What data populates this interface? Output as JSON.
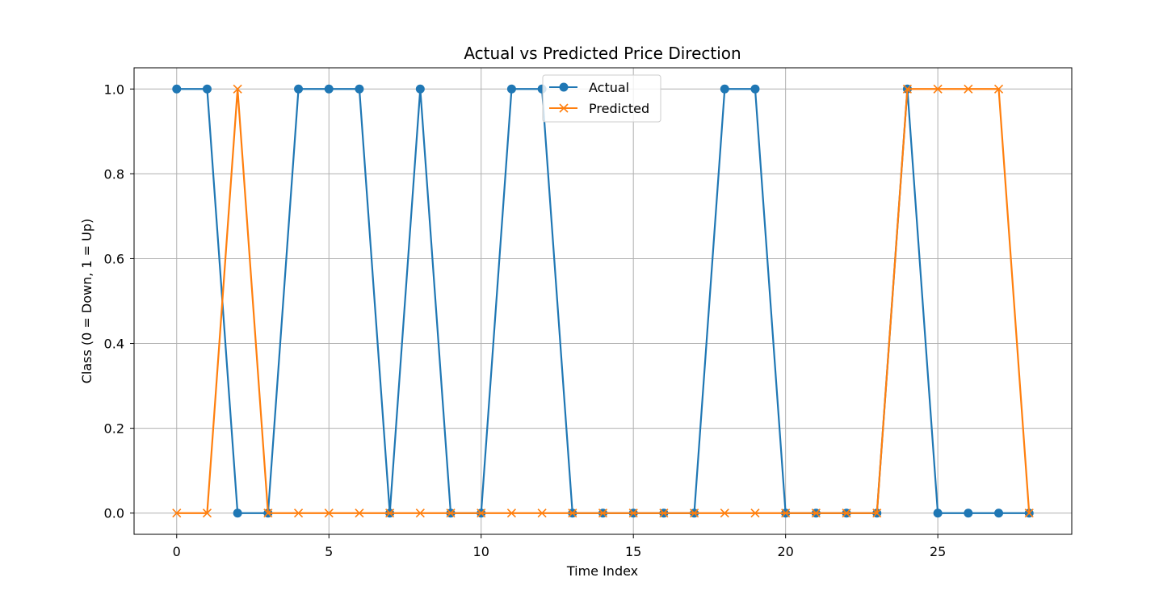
{
  "chart_data": {
    "type": "line",
    "title": "Actual vs Predicted Price Direction",
    "xlabel": "Time Index",
    "ylabel": "Class (0 = Down, 1 = Up)",
    "xlim": [
      -1.4,
      29.4
    ],
    "ylim": [
      -0.05,
      1.05
    ],
    "xticks": [
      0,
      5,
      10,
      15,
      20,
      25
    ],
    "yticks": [
      0.0,
      0.2,
      0.4,
      0.6,
      0.8,
      1.0
    ],
    "xtick_labels": [
      "0",
      "5",
      "10",
      "15",
      "20",
      "25"
    ],
    "ytick_labels": [
      "0.0",
      "0.2",
      "0.4",
      "0.6",
      "0.8",
      "1.0"
    ],
    "grid": true,
    "legend_position": "top-center",
    "x": [
      0,
      1,
      2,
      3,
      4,
      5,
      6,
      7,
      8,
      9,
      10,
      11,
      12,
      13,
      14,
      15,
      16,
      17,
      18,
      19,
      20,
      21,
      22,
      23,
      24,
      25,
      26,
      27,
      28
    ],
    "series": [
      {
        "name": "Actual",
        "color": "#1f77b4",
        "marker": "circle",
        "values": [
          1,
          1,
          0,
          0,
          1,
          1,
          1,
          0,
          1,
          0,
          0,
          1,
          1,
          0,
          0,
          0,
          0,
          0,
          1,
          1,
          0,
          0,
          0,
          0,
          1,
          0,
          0,
          0,
          0
        ]
      },
      {
        "name": "Predicted",
        "color": "#ff7f0e",
        "marker": "x",
        "values": [
          0,
          0,
          1,
          0,
          0,
          0,
          0,
          0,
          0,
          0,
          0,
          0,
          0,
          0,
          0,
          0,
          0,
          0,
          0,
          0,
          0,
          0,
          0,
          0,
          1,
          1,
          1,
          1,
          0
        ]
      }
    ]
  }
}
